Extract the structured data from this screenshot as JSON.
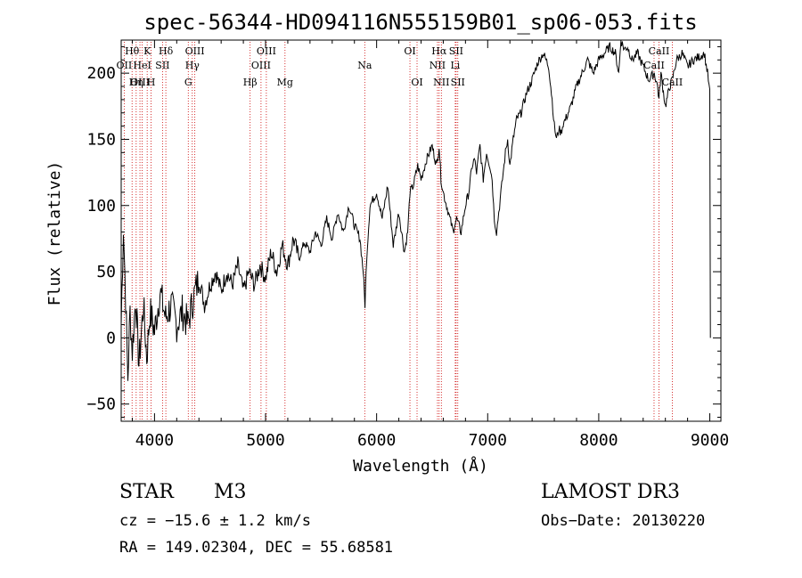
{
  "chart_data": {
    "type": "line",
    "title": "spec-56344-HD094116N555159B01_sp06-053.fits",
    "xlabel": "Wavelength (Å)",
    "ylabel": "Flux (relative)",
    "xlim": [
      3700,
      9100
    ],
    "ylim": [
      -63,
      225
    ],
    "xticks": [
      4000,
      5000,
      6000,
      7000,
      8000,
      9000
    ],
    "yticks": [
      -50,
      0,
      50,
      100,
      150,
      200
    ],
    "grid": false,
    "series": [
      {
        "name": "flux",
        "x": [
          3700,
          3720,
          3740,
          3760,
          3780,
          3800,
          3830,
          3860,
          3900,
          3930,
          3960,
          4000,
          4050,
          4100,
          4150,
          4200,
          4250,
          4300,
          4350,
          4400,
          4450,
          4500,
          4550,
          4600,
          4650,
          4700,
          4750,
          4800,
          4850,
          4900,
          4950,
          5000,
          5050,
          5100,
          5150,
          5200,
          5250,
          5300,
          5350,
          5400,
          5450,
          5500,
          5550,
          5600,
          5650,
          5700,
          5750,
          5800,
          5850,
          5880,
          5895,
          5910,
          5940,
          6000,
          6050,
          6100,
          6150,
          6200,
          6250,
          6280,
          6300,
          6330,
          6370,
          6400,
          6450,
          6500,
          6540,
          6563,
          6580,
          6600,
          6630,
          6660,
          6690,
          6700,
          6720,
          6740,
          6760,
          6780,
          6800,
          6830,
          6860,
          6880,
          6900,
          6930,
          6960,
          6990,
          7020,
          7040,
          7060,
          7080,
          7100,
          7120,
          7140,
          7160,
          7180,
          7200,
          7230,
          7260,
          7300,
          7350,
          7400,
          7450,
          7500,
          7550,
          7580,
          7600,
          7620,
          7640,
          7660,
          7680,
          7700,
          7750,
          7800,
          7850,
          7900,
          7950,
          8000,
          8050,
          8100,
          8120,
          8150,
          8180,
          8200,
          8230,
          8260,
          8300,
          8350,
          8400,
          8450,
          8500,
          8530,
          8542,
          8560,
          8600,
          8640,
          8662,
          8700,
          8750,
          8800,
          8850,
          8900,
          8950,
          8980,
          9000,
          9005
        ],
        "y": [
          10,
          85,
          30,
          -30,
          20,
          -10,
          30,
          -20,
          25,
          -15,
          20,
          5,
          35,
          15,
          25,
          10,
          20,
          10,
          30,
          45,
          25,
          40,
          50,
          35,
          50,
          40,
          55,
          35,
          50,
          40,
          55,
          45,
          65,
          50,
          70,
          55,
          75,
          60,
          72,
          65,
          80,
          70,
          90,
          75,
          95,
          80,
          100,
          85,
          75,
          50,
          25,
          60,
          100,
          110,
          90,
          115,
          70,
          95,
          65,
          80,
          110,
          115,
          130,
          120,
          135,
          145,
          130,
          145,
          120,
          110,
          100,
          90,
          80,
          85,
          90,
          85,
          80,
          90,
          100,
          110,
          130,
          135,
          125,
          145,
          120,
          140,
          130,
          120,
          90,
          80,
          95,
          110,
          125,
          140,
          150,
          130,
          150,
          165,
          170,
          185,
          195,
          208,
          215,
          205,
          180,
          160,
          150,
          158,
          155,
          162,
          165,
          175,
          190,
          200,
          210,
          200,
          210,
          215,
          220,
          218,
          215,
          200,
          225,
          218,
          220,
          210,
          215,
          205,
          195,
          200,
          190,
          180,
          200,
          175,
          190,
          195,
          210,
          215,
          205,
          210,
          212,
          215,
          200,
          185,
          0
        ]
      }
    ],
    "annotations": [
      {
        "label": "Hθ",
        "x": 3798,
        "row": 1
      },
      {
        "label": "OII",
        "x": 3727,
        "row": 2
      },
      {
        "label": "OIII",
        "x": 3869,
        "row": 3
      },
      {
        "label": "K",
        "x": 3934,
        "row": 1
      },
      {
        "label": "HeI",
        "x": 3889,
        "row": 2
      },
      {
        "label": "Hη",
        "x": 3835,
        "row": 3
      },
      {
        "label": "H",
        "x": 3969,
        "row": 3
      },
      {
        "label": "Hδ",
        "x": 4102,
        "row": 1
      },
      {
        "label": "SII",
        "x": 4072,
        "row": 2
      },
      {
        "label": "OIII",
        "x": 4363,
        "row": 1
      },
      {
        "label": "Hγ",
        "x": 4340,
        "row": 2
      },
      {
        "label": "G",
        "x": 4304,
        "row": 3
      },
      {
        "label": "Hβ",
        "x": 4861,
        "row": 3
      },
      {
        "label": "OIII",
        "x": 5007,
        "row": 1
      },
      {
        "label": "OIII",
        "x": 4959,
        "row": 2
      },
      {
        "label": "Mg",
        "x": 5175,
        "row": 3
      },
      {
        "label": "Na",
        "x": 5893,
        "row": 2
      },
      {
        "label": "OI",
        "x": 6300,
        "row": 1
      },
      {
        "label": "OI",
        "x": 6364,
        "row": 3
      },
      {
        "label": "Hα",
        "x": 6563,
        "row": 1
      },
      {
        "label": "SII",
        "x": 6716,
        "row": 1
      },
      {
        "label": "NII",
        "x": 6548,
        "row": 2
      },
      {
        "label": "Li",
        "x": 6708,
        "row": 2
      },
      {
        "label": "NII",
        "x": 6583,
        "row": 3
      },
      {
        "label": "SII",
        "x": 6731,
        "row": 3
      },
      {
        "label": "CaII",
        "x": 8542,
        "row": 1
      },
      {
        "label": "CaII",
        "x": 8498,
        "row": 2
      },
      {
        "label": "CaII",
        "x": 8662,
        "row": 3
      }
    ],
    "line_markers": [
      3727,
      3798,
      3835,
      3869,
      3889,
      3934,
      3969,
      4072,
      4102,
      4304,
      4340,
      4363,
      4861,
      4959,
      5007,
      5175,
      5893,
      6300,
      6364,
      6548,
      6563,
      6583,
      6708,
      6716,
      6731,
      8498,
      8542,
      8662
    ]
  },
  "info": {
    "object_class": "STAR",
    "subclass": "M3",
    "survey": "LAMOST DR3",
    "cz": "cz = −15.6 ± 1.2 km/s",
    "obs_date": "Obs−Date: 20130220",
    "coords": "RA = 149.02304, DEC =  55.68581"
  },
  "colors": {
    "spectrum": "#000000",
    "markers": "#cc0000",
    "axes": "#000000",
    "background": "#ffffff"
  }
}
